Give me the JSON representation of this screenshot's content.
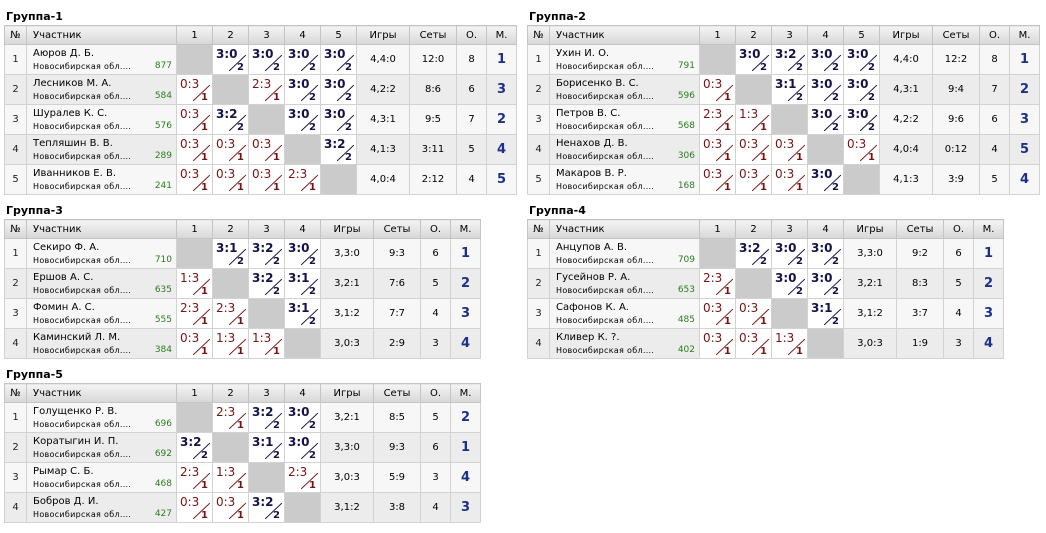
{
  "headers": {
    "num": "№",
    "participant": "Участник",
    "games": "Игры",
    "sets": "Сеты",
    "points": "О.",
    "place": "М."
  },
  "groups": [
    {
      "title": "Группа-1",
      "cols": [
        "1",
        "2",
        "3",
        "4",
        "5"
      ],
      "players": [
        {
          "num": "1",
          "name": "Аюров Д. Б.",
          "region": "Новосибирская обл....",
          "rating": "877",
          "results": [
            null,
            {
              "s": "3:0",
              "p": "2",
              "w": true
            },
            {
              "s": "3:0",
              "p": "2",
              "w": true
            },
            {
              "s": "3:0",
              "p": "2",
              "w": true
            },
            {
              "s": "3:0",
              "p": "2",
              "w": true
            }
          ],
          "games": "4,4:0",
          "sets": "12:0",
          "points": "8",
          "place": "1"
        },
        {
          "num": "2",
          "name": "Лесников М. А.",
          "region": "Новосибирская обл....",
          "rating": "584",
          "results": [
            {
              "s": "0:3",
              "p": "1",
              "w": false
            },
            null,
            {
              "s": "2:3",
              "p": "1",
              "w": false
            },
            {
              "s": "3:0",
              "p": "2",
              "w": true
            },
            {
              "s": "3:0",
              "p": "2",
              "w": true
            }
          ],
          "games": "4,2:2",
          "sets": "8:6",
          "points": "6",
          "place": "3"
        },
        {
          "num": "3",
          "name": "Шуралев К. С.",
          "region": "Новосибирская обл....",
          "rating": "576",
          "results": [
            {
              "s": "0:3",
              "p": "1",
              "w": false
            },
            {
              "s": "3:2",
              "p": "2",
              "w": true
            },
            null,
            {
              "s": "3:0",
              "p": "2",
              "w": true
            },
            {
              "s": "3:0",
              "p": "2",
              "w": true
            }
          ],
          "games": "4,3:1",
          "sets": "9:5",
          "points": "7",
          "place": "2"
        },
        {
          "num": "4",
          "name": "Тепляшин В. В.",
          "region": "Новосибирская обл....",
          "rating": "289",
          "results": [
            {
              "s": "0:3",
              "p": "1",
              "w": false
            },
            {
              "s": "0:3",
              "p": "1",
              "w": false
            },
            {
              "s": "0:3",
              "p": "1",
              "w": false
            },
            null,
            {
              "s": "3:2",
              "p": "2",
              "w": true
            }
          ],
          "games": "4,1:3",
          "sets": "3:11",
          "points": "5",
          "place": "4"
        },
        {
          "num": "5",
          "name": "Иванников Е. В.",
          "region": "Новосибирская обл....",
          "rating": "241",
          "results": [
            {
              "s": "0:3",
              "p": "1",
              "w": false
            },
            {
              "s": "0:3",
              "p": "1",
              "w": false
            },
            {
              "s": "0:3",
              "p": "1",
              "w": false
            },
            {
              "s": "2:3",
              "p": "1",
              "w": false
            },
            null
          ],
          "games": "4,0:4",
          "sets": "2:12",
          "points": "4",
          "place": "5"
        }
      ]
    },
    {
      "title": "Группа-2",
      "cols": [
        "1",
        "2",
        "3",
        "4",
        "5"
      ],
      "players": [
        {
          "num": "1",
          "name": "Ухин И. О.",
          "region": "Новосибирская обл....",
          "rating": "791",
          "results": [
            null,
            {
              "s": "3:0",
              "p": "2",
              "w": true
            },
            {
              "s": "3:2",
              "p": "2",
              "w": true
            },
            {
              "s": "3:0",
              "p": "2",
              "w": true
            },
            {
              "s": "3:0",
              "p": "2",
              "w": true
            }
          ],
          "games": "4,4:0",
          "sets": "12:2",
          "points": "8",
          "place": "1"
        },
        {
          "num": "2",
          "name": "Борисенко В. С.",
          "region": "Новосибирская обл....",
          "rating": "596",
          "results": [
            {
              "s": "0:3",
              "p": "1",
              "w": false
            },
            null,
            {
              "s": "3:1",
              "p": "2",
              "w": true
            },
            {
              "s": "3:0",
              "p": "2",
              "w": true
            },
            {
              "s": "3:0",
              "p": "2",
              "w": true
            }
          ],
          "games": "4,3:1",
          "sets": "9:4",
          "points": "7",
          "place": "2"
        },
        {
          "num": "3",
          "name": "Петров В. С.",
          "region": "Новосибирская обл....",
          "rating": "568",
          "results": [
            {
              "s": "2:3",
              "p": "1",
              "w": false
            },
            {
              "s": "1:3",
              "p": "1",
              "w": false
            },
            null,
            {
              "s": "3:0",
              "p": "2",
              "w": true
            },
            {
              "s": "3:0",
              "p": "2",
              "w": true
            }
          ],
          "games": "4,2:2",
          "sets": "9:6",
          "points": "6",
          "place": "3"
        },
        {
          "num": "4",
          "name": "Ненахов Д. В.",
          "region": "Новосибирская обл....",
          "rating": "306",
          "results": [
            {
              "s": "0:3",
              "p": "1",
              "w": false
            },
            {
              "s": "0:3",
              "p": "1",
              "w": false
            },
            {
              "s": "0:3",
              "p": "1",
              "w": false
            },
            null,
            {
              "s": "0:3",
              "p": "1",
              "w": false
            }
          ],
          "games": "4,0:4",
          "sets": "0:12",
          "points": "4",
          "place": "5"
        },
        {
          "num": "5",
          "name": "Макаров В. Р.",
          "region": "Новосибирская обл....",
          "rating": "168",
          "results": [
            {
              "s": "0:3",
              "p": "1",
              "w": false
            },
            {
              "s": "0:3",
              "p": "1",
              "w": false
            },
            {
              "s": "0:3",
              "p": "1",
              "w": false
            },
            {
              "s": "3:0",
              "p": "2",
              "w": true
            },
            null
          ],
          "games": "4,1:3",
          "sets": "3:9",
          "points": "5",
          "place": "4"
        }
      ]
    },
    {
      "title": "Группа-3",
      "cols": [
        "1",
        "2",
        "3",
        "4"
      ],
      "players": [
        {
          "num": "1",
          "name": "Секиро Ф. А.",
          "region": "Новосибирская обл....",
          "rating": "710",
          "results": [
            null,
            {
              "s": "3:1",
              "p": "2",
              "w": true
            },
            {
              "s": "3:2",
              "p": "2",
              "w": true
            },
            {
              "s": "3:0",
              "p": "2",
              "w": true
            }
          ],
          "games": "3,3:0",
          "sets": "9:3",
          "points": "6",
          "place": "1"
        },
        {
          "num": "2",
          "name": "Ершов А. С.",
          "region": "Новосибирская обл....",
          "rating": "635",
          "results": [
            {
              "s": "1:3",
              "p": "1",
              "w": false
            },
            null,
            {
              "s": "3:2",
              "p": "2",
              "w": true
            },
            {
              "s": "3:1",
              "p": "2",
              "w": true
            }
          ],
          "games": "3,2:1",
          "sets": "7:6",
          "points": "5",
          "place": "2"
        },
        {
          "num": "3",
          "name": "Фомин А. С.",
          "region": "Новосибирская обл....",
          "rating": "555",
          "results": [
            {
              "s": "2:3",
              "p": "1",
              "w": false
            },
            {
              "s": "2:3",
              "p": "1",
              "w": false
            },
            null,
            {
              "s": "3:1",
              "p": "2",
              "w": true
            }
          ],
          "games": "3,1:2",
          "sets": "7:7",
          "points": "4",
          "place": "3"
        },
        {
          "num": "4",
          "name": "Каминский Л. М.",
          "region": "Новосибирская обл....",
          "rating": "384",
          "results": [
            {
              "s": "0:3",
              "p": "1",
              "w": false
            },
            {
              "s": "1:3",
              "p": "1",
              "w": false
            },
            {
              "s": "1:3",
              "p": "1",
              "w": false
            },
            null
          ],
          "games": "3,0:3",
          "sets": "2:9",
          "points": "3",
          "place": "4"
        }
      ]
    },
    {
      "title": "Группа-4",
      "cols": [
        "1",
        "2",
        "3",
        "4"
      ],
      "players": [
        {
          "num": "1",
          "name": "Анцупов А. В.",
          "region": "Новосибирская обл....",
          "rating": "709",
          "results": [
            null,
            {
              "s": "3:2",
              "p": "2",
              "w": true
            },
            {
              "s": "3:0",
              "p": "2",
              "w": true
            },
            {
              "s": "3:0",
              "p": "2",
              "w": true
            }
          ],
          "games": "3,3:0",
          "sets": "9:2",
          "points": "6",
          "place": "1"
        },
        {
          "num": "2",
          "name": "Гусейнов Р. А.",
          "region": "Новосибирская обл....",
          "rating": "653",
          "results": [
            {
              "s": "2:3",
              "p": "1",
              "w": false
            },
            null,
            {
              "s": "3:0",
              "p": "2",
              "w": true
            },
            {
              "s": "3:0",
              "p": "2",
              "w": true
            }
          ],
          "games": "3,2:1",
          "sets": "8:3",
          "points": "5",
          "place": "2"
        },
        {
          "num": "3",
          "name": "Сафонов К. А.",
          "region": "Новосибирская обл....",
          "rating": "485",
          "results": [
            {
              "s": "0:3",
              "p": "1",
              "w": false
            },
            {
              "s": "0:3",
              "p": "1",
              "w": false
            },
            null,
            {
              "s": "3:1",
              "p": "2",
              "w": true
            }
          ],
          "games": "3,1:2",
          "sets": "3:7",
          "points": "4",
          "place": "3"
        },
        {
          "num": "4",
          "name": "Кливер К. ?.",
          "region": "Новосибирская обл....",
          "rating": "402",
          "results": [
            {
              "s": "0:3",
              "p": "1",
              "w": false
            },
            {
              "s": "0:3",
              "p": "1",
              "w": false
            },
            {
              "s": "1:3",
              "p": "1",
              "w": false
            },
            null
          ],
          "games": "3,0:3",
          "sets": "1:9",
          "points": "3",
          "place": "4"
        }
      ]
    },
    {
      "title": "Группа-5",
      "cols": [
        "1",
        "2",
        "3",
        "4"
      ],
      "players": [
        {
          "num": "1",
          "name": "Голущенко Р. В.",
          "region": "Новосибирская обл....",
          "rating": "696",
          "results": [
            null,
            {
              "s": "2:3",
              "p": "1",
              "w": false
            },
            {
              "s": "3:2",
              "p": "2",
              "w": true
            },
            {
              "s": "3:0",
              "p": "2",
              "w": true
            }
          ],
          "games": "3,2:1",
          "sets": "8:5",
          "points": "5",
          "place": "2"
        },
        {
          "num": "2",
          "name": "Коратыгин И. П.",
          "region": "Новосибирская обл....",
          "rating": "692",
          "results": [
            {
              "s": "3:2",
              "p": "2",
              "w": true
            },
            null,
            {
              "s": "3:1",
              "p": "2",
              "w": true
            },
            {
              "s": "3:0",
              "p": "2",
              "w": true
            }
          ],
          "games": "3,3:0",
          "sets": "9:3",
          "points": "6",
          "place": "1"
        },
        {
          "num": "3",
          "name": "Рымар С. Б.",
          "region": "Новосибирская обл....",
          "rating": "468",
          "results": [
            {
              "s": "2:3",
              "p": "1",
              "w": false
            },
            {
              "s": "1:3",
              "p": "1",
              "w": false
            },
            null,
            {
              "s": "2:3",
              "p": "1",
              "w": false
            }
          ],
          "games": "3,0:3",
          "sets": "5:9",
          "points": "3",
          "place": "4"
        },
        {
          "num": "4",
          "name": "Бобров Д. И.",
          "region": "Новосибирская обл....",
          "rating": "427",
          "results": [
            {
              "s": "0:3",
              "p": "1",
              "w": false
            },
            {
              "s": "0:3",
              "p": "1",
              "w": false
            },
            {
              "s": "3:2",
              "p": "2",
              "w": true
            },
            null
          ],
          "games": "3,1:2",
          "sets": "3:8",
          "points": "4",
          "place": "3"
        }
      ]
    }
  ]
}
